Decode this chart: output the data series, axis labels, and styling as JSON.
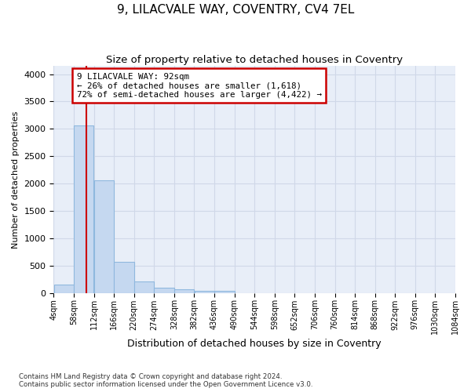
{
  "title1": "9, LILACVALE WAY, COVENTRY, CV4 7EL",
  "title2": "Size of property relative to detached houses in Coventry",
  "xlabel": "Distribution of detached houses by size in Coventry",
  "ylabel": "Number of detached properties",
  "footnote1": "Contains HM Land Registry data © Crown copyright and database right 2024.",
  "footnote2": "Contains public sector information licensed under the Open Government Licence v3.0.",
  "bin_edges": [
    4,
    58,
    112,
    166,
    220,
    274,
    328,
    382,
    436,
    490,
    544,
    598,
    652,
    706,
    760,
    814,
    868,
    922,
    976,
    1030,
    1084
  ],
  "bar_heights": [
    150,
    3060,
    2065,
    565,
    205,
    90,
    60,
    40,
    40,
    0,
    0,
    0,
    0,
    0,
    0,
    0,
    0,
    0,
    0,
    0
  ],
  "bar_color": "#c5d8f0",
  "bar_edgecolor": "#8fb8de",
  "property_line_x": 92,
  "property_line_color": "#cc0000",
  "annotation_line1": "9 LILACVALE WAY: 92sqm",
  "annotation_line2": "← 26% of detached houses are smaller (1,618)",
  "annotation_line3": "72% of semi-detached houses are larger (4,422) →",
  "annotation_box_color": "#cc0000",
  "ylim": [
    0,
    4150
  ],
  "yticks": [
    0,
    500,
    1000,
    1500,
    2000,
    2500,
    3000,
    3500,
    4000
  ],
  "grid_color": "#d0d8e8",
  "bg_color": "#e8eef8",
  "fig_bg_color": "#ffffff",
  "title1_fontsize": 11,
  "title2_fontsize": 9.5,
  "ylabel_fontsize": 8,
  "xlabel_fontsize": 9
}
